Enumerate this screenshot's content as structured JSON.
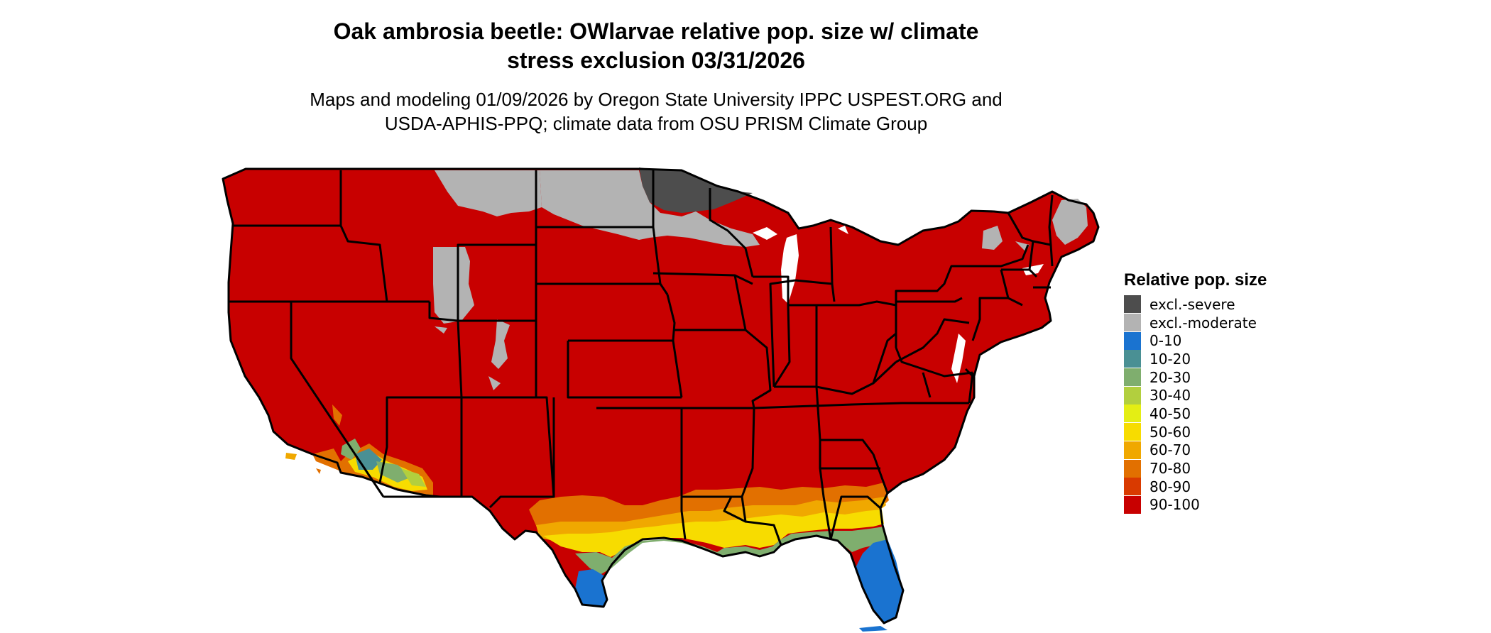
{
  "title": {
    "line1": "Oak ambrosia beetle: OWlarvae relative pop. size w/ climate",
    "line2": "stress exclusion 03/31/2026"
  },
  "subtitle": {
    "line1": "Maps and modeling 01/09/2026 by Oregon State University IPPC USPEST.ORG and",
    "line2": "USDA-APHIS-PPQ; climate data from OSU PRISM Climate Group"
  },
  "legend": {
    "title": "Relative pop. size",
    "items": [
      {
        "label": "excl.-severe",
        "color": "#4d4d4d"
      },
      {
        "label": "excl.-moderate",
        "color": "#b3b3b3"
      },
      {
        "label": "0-10",
        "color": "#1a73d0"
      },
      {
        "label": "10-20",
        "color": "#4a9094"
      },
      {
        "label": "20-30",
        "color": "#7fae6e"
      },
      {
        "label": "30-40",
        "color": "#b2cf3e"
      },
      {
        "label": "40-50",
        "color": "#e4ee14"
      },
      {
        "label": "50-60",
        "color": "#f7dc00"
      },
      {
        "label": "60-70",
        "color": "#f0a800"
      },
      {
        "label": "70-80",
        "color": "#e27000"
      },
      {
        "label": "80-90",
        "color": "#d93a00"
      },
      {
        "label": "90-100",
        "color": "#c80000"
      }
    ]
  },
  "map": {
    "region": "Contiguous United States",
    "base_color": "#c80000",
    "border_color": "#000000"
  }
}
